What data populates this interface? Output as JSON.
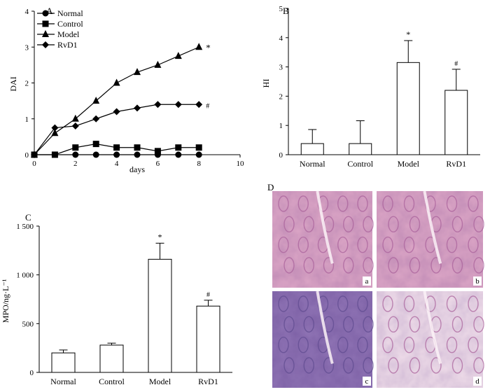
{
  "panels": {
    "A": {
      "label": "A",
      "chart_data": {
        "type": "line",
        "xlabel": "days",
        "ylabel": "DAI",
        "xlim": [
          0,
          10
        ],
        "ylim": [
          0,
          4
        ],
        "xticks": [
          "0",
          "2",
          "4",
          "6",
          "8",
          "10"
        ],
        "yticks": [
          "0",
          "1",
          "2",
          "3",
          "4"
        ],
        "legend_position": "top-left",
        "series": [
          {
            "name": "Normal",
            "marker": "circle",
            "x": [
              0,
              1,
              2,
              3,
              4,
              5,
              6,
              7,
              8
            ],
            "y": [
              0,
              0,
              0,
              0,
              0,
              0,
              0,
              0,
              0
            ]
          },
          {
            "name": "Control",
            "marker": "square",
            "x": [
              0,
              1,
              2,
              3,
              4,
              5,
              6,
              7,
              8
            ],
            "y": [
              0,
              0,
              0.2,
              0.3,
              0.2,
              0.2,
              0.1,
              0.2,
              0.2
            ]
          },
          {
            "name": "Model",
            "marker": "triangle",
            "x": [
              0,
              1,
              2,
              3,
              4,
              5,
              6,
              7,
              8
            ],
            "y": [
              0,
              0.6,
              1.0,
              1.5,
              2.0,
              2.3,
              2.5,
              2.75,
              3.0
            ]
          },
          {
            "name": "RvD1",
            "marker": "diamond",
            "x": [
              0,
              1,
              2,
              3,
              4,
              5,
              6,
              7,
              8
            ],
            "y": [
              0,
              0.75,
              0.8,
              1.0,
              1.2,
              1.3,
              1.4,
              1.4,
              1.4
            ]
          }
        ],
        "annotations": [
          {
            "series": "Model",
            "text": "*"
          },
          {
            "series": "RvD1",
            "text": "#"
          }
        ]
      }
    },
    "B": {
      "label": "B",
      "chart_data": {
        "type": "bar",
        "ylabel": "HI",
        "ylim": [
          0,
          5
        ],
        "yticks": [
          "0",
          "1",
          "2",
          "3",
          "4",
          "5"
        ],
        "categories": [
          "Normal",
          "Control",
          "Model",
          "RvD1"
        ],
        "values": [
          0.38,
          0.38,
          3.15,
          2.2
        ],
        "errors": [
          0.48,
          0.78,
          0.75,
          0.72
        ],
        "markers": [
          "",
          "",
          "*",
          "#"
        ]
      }
    },
    "C": {
      "label": "C",
      "chart_data": {
        "type": "bar",
        "ylabel": "MPO/ng·L⁻¹",
        "ylim": [
          0,
          1500
        ],
        "yticks": [
          "0",
          "500",
          "1 000",
          "1 500"
        ],
        "categories": [
          "Normal",
          "Control",
          "Model",
          "RvD1"
        ],
        "values": [
          200,
          280,
          1160,
          680
        ],
        "errors": [
          30,
          20,
          165,
          60
        ],
        "markers": [
          "",
          "",
          "*",
          "#"
        ]
      }
    },
    "D": {
      "label": "D",
      "images": [
        {
          "label": "a"
        },
        {
          "label": "b"
        },
        {
          "label": "c"
        },
        {
          "label": "d"
        }
      ]
    }
  },
  "colors": {
    "axis": "#000000",
    "bar_fill": "#ffffff",
    "tissue_pink": "#dca6c6",
    "tissue_purple": "#8f73b4",
    "tissue_light": "#efdde9"
  }
}
